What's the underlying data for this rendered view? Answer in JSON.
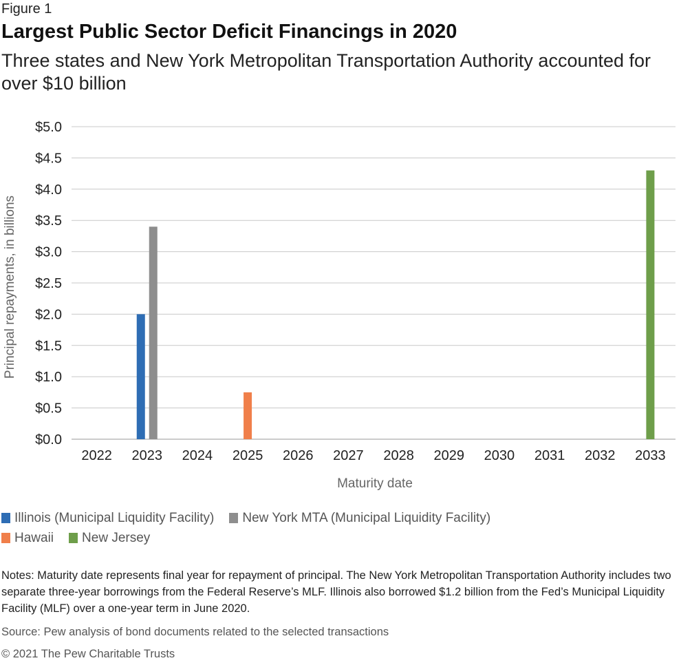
{
  "figure_label": "Figure 1",
  "title": "Largest Public Sector Deficit Financings in 2020",
  "subtitle": "Three states and New York Metropolitan Transportation Authority accounted for over $10 billion",
  "chart_data": {
    "type": "bar",
    "categories": [
      "2022",
      "2023",
      "2024",
      "2025",
      "2026",
      "2027",
      "2028",
      "2029",
      "2030",
      "2031",
      "2032",
      "2033"
    ],
    "series": [
      {
        "name": "Illinois (Municipal Liquidity Facility)",
        "color": "#2e6db4",
        "values": [
          0,
          2.0,
          0,
          0,
          0,
          0,
          0,
          0,
          0,
          0,
          0,
          0
        ]
      },
      {
        "name": "New York MTA (Municipal Liquidity Facility)",
        "color": "#8e8e8e",
        "values": [
          0,
          3.4,
          0,
          0,
          0,
          0,
          0,
          0,
          0,
          0,
          0,
          0
        ]
      },
      {
        "name": "Hawaii",
        "color": "#f07f4a",
        "values": [
          0,
          0,
          0,
          0.75,
          0,
          0,
          0,
          0,
          0,
          0,
          0,
          0
        ]
      },
      {
        "name": "New Jersey",
        "color": "#6e9e4a",
        "values": [
          0,
          0,
          0,
          0,
          0,
          0,
          0,
          0,
          0,
          0,
          0,
          4.3
        ]
      }
    ],
    "xlabel": "Maturity date",
    "ylabel": "Principal repayments, in billions",
    "ylim": [
      0,
      5.0
    ],
    "yticks": [
      "$0.0",
      "$0.5",
      "$1.0",
      "$1.5",
      "$2.0",
      "$2.5",
      "$3.0",
      "$3.5",
      "$4.0",
      "$4.5",
      "$5.0"
    ],
    "grid": true,
    "legend_position": "bottom"
  },
  "notes": "Notes: Maturity date represents final year for repayment of principal. The New York Metropolitan Transportation Authority includes two separate three-year borrowings from the Federal Reserve’s MLF. Illinois also borrowed $1.2 billion from the Fed’s Municipal Liquidity Facility (MLF) over a one-year term in June 2020.",
  "source": "Source: Pew analysis of bond documents related to the selected transactions",
  "copyright": "© 2021 The Pew Charitable Trusts"
}
